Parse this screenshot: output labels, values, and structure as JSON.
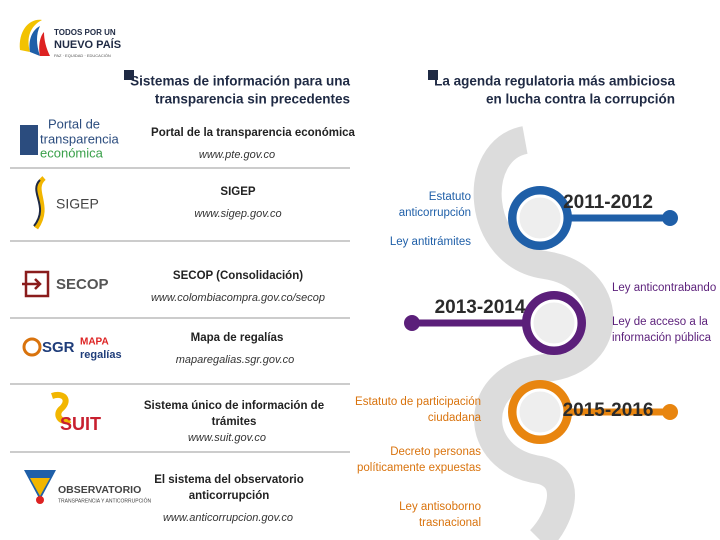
{
  "header": {
    "logo_line1": "TODOS POR UN",
    "logo_line2": "NUEVO PAÍS",
    "logo_tagline": "PAZ · EQUIDAD · EDUCACIÓN"
  },
  "left_section": {
    "title_lines": [
      "Sistemas de información para una",
      "transparencia sin precedentes"
    ],
    "items": [
      {
        "logo_lines": [
          "Portal de",
          "transparencia",
          "económica"
        ],
        "name_lines": [
          "Portal de la transparencia económica"
        ],
        "url": "www.pte.gov.co"
      },
      {
        "logo_lines": [
          "SIGEP"
        ],
        "name_lines": [
          "SIGEP"
        ],
        "url": "www.sigep.gov.co"
      },
      {
        "logo_lines": [
          "SECOP"
        ],
        "name_lines": [
          "SECOP (Consolidación)"
        ],
        "url": "www.colombiacompra.gov.co/secop"
      },
      {
        "logo_lines": [
          "SGR",
          "MAPA",
          "regalías"
        ],
        "name_lines": [
          "Mapa de regalías"
        ],
        "url": "maparegalias.sgr.gov.co"
      },
      {
        "logo_lines": [
          "SUIT"
        ],
        "name_lines": [
          "Sistema único de información de",
          "trámites"
        ],
        "url": "www.suit.gov.co"
      },
      {
        "logo_lines": [
          "OBSERVATORIO",
          "TRANSPARENCIA Y ANTICORRUPCIÓN"
        ],
        "name_lines": [
          "El sistema del observatorio",
          "anticorrupción"
        ],
        "url": "www.anticorrupcion.gov.co"
      }
    ]
  },
  "right_section": {
    "title_lines": [
      "La agenda regulatoria más ambiciosa",
      "en lucha contra la corrupción"
    ],
    "periods": [
      {
        "years": "2011-2012",
        "items": [
          {
            "lines": [
              "Estatuto",
              "anticorrupción"
            ]
          },
          {
            "lines": [
              "Ley antitrámites"
            ]
          }
        ]
      },
      {
        "years": "2013-2014",
        "items": [
          {
            "lines": [
              "Ley anticontrabando"
            ]
          },
          {
            "lines": [
              "Ley de acceso a la",
              "información pública"
            ]
          }
        ]
      },
      {
        "years": "2015-2016",
        "items": [
          {
            "lines": [
              "Estatuto de participación",
              "ciudadana"
            ]
          },
          {
            "lines": [
              "Decreto personas",
              "políticamente expuestas"
            ]
          },
          {
            "lines": [
              "Ley antisoborno",
              "trasnacional"
            ]
          }
        ]
      }
    ]
  }
}
